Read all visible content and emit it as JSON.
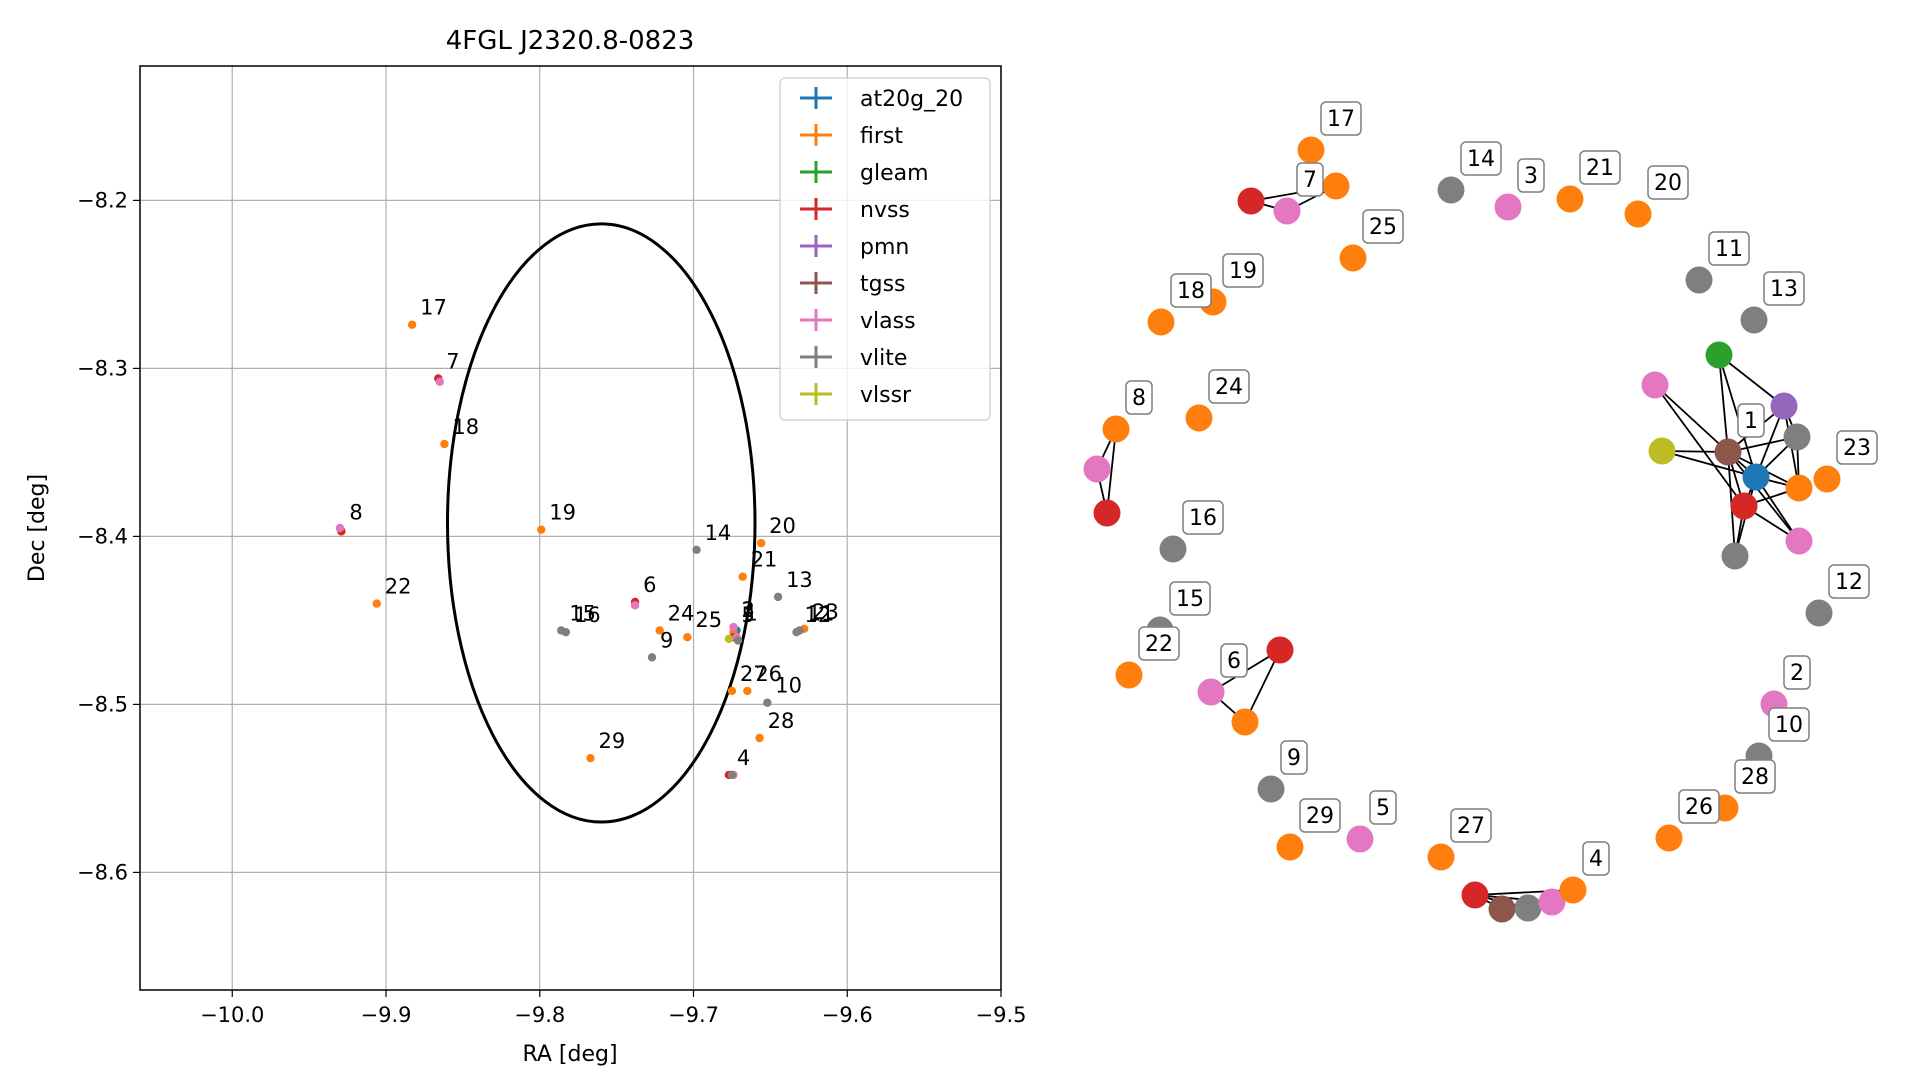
{
  "chart_data": [
    {
      "type": "scatter",
      "title": "4FGL J2320.8-0823",
      "xlabel": "RA [deg]",
      "ylabel": "Dec [deg]",
      "xlim": [
        -10.06,
        -9.5
      ],
      "ylim": [
        -8.67,
        -8.12
      ],
      "x_ticks": [
        -10.0,
        -9.9,
        -9.8,
        -9.7,
        -9.6,
        -9.5
      ],
      "x_tick_labels": [
        "−10.0",
        "−9.9",
        "−9.8",
        "−9.7",
        "−9.6",
        "−9.5"
      ],
      "y_ticks": [
        -8.2,
        -8.3,
        -8.4,
        -8.5,
        -8.6
      ],
      "y_tick_labels": [
        "−8.2",
        "−8.3",
        "−8.4",
        "−8.5",
        "−8.6"
      ],
      "grid": true,
      "legend_position": "top-right",
      "ellipse": {
        "center": [
          -9.76,
          -8.392
        ],
        "semi_axis_ra": 0.1,
        "semi_axis_dec": 0.178,
        "color": "#000000"
      },
      "series": [
        {
          "name": "at20g_20",
          "color": "#1f77b4",
          "points": [
            [
              -9.672,
              -8.456
            ]
          ]
        },
        {
          "name": "first",
          "color": "#ff7f0e",
          "points": [
            [
              -9.883,
              -8.274
            ],
            [
              -9.862,
              -8.345
            ],
            [
              -9.799,
              -8.396
            ],
            [
              -9.906,
              -8.44
            ],
            [
              -9.656,
              -8.404
            ],
            [
              -9.668,
              -8.424
            ],
            [
              -9.722,
              -8.456
            ],
            [
              -9.704,
              -8.46
            ],
            [
              -9.628,
              -8.455
            ],
            [
              -9.675,
              -8.492
            ],
            [
              -9.665,
              -8.492
            ],
            [
              -9.657,
              -8.52
            ],
            [
              -9.767,
              -8.532
            ],
            [
              -9.674,
              -8.457
            ]
          ]
        },
        {
          "name": "gleam",
          "color": "#2ca02c",
          "points": []
        },
        {
          "name": "nvss",
          "color": "#d62728",
          "points": [
            [
              -9.866,
              -8.306
            ],
            [
              -9.929,
              -8.397
            ],
            [
              -9.738,
              -8.439
            ],
            [
              -9.674,
              -8.46
            ],
            [
              -9.677,
              -8.542
            ]
          ]
        },
        {
          "name": "pmn",
          "color": "#9467bd",
          "points": []
        },
        {
          "name": "tgss",
          "color": "#8c564b",
          "points": [
            [
              -9.675,
              -8.542
            ]
          ]
        },
        {
          "name": "vlass",
          "color": "#e377c2",
          "points": [
            [
              -9.865,
              -8.308
            ],
            [
              -9.93,
              -8.395
            ],
            [
              -9.738,
              -8.441
            ],
            [
              -9.672,
              -8.46
            ],
            [
              -9.674,
              -8.454
            ],
            [
              -9.674,
              -8.542
            ]
          ]
        },
        {
          "name": "vlite",
          "color": "#7f7f7f",
          "points": [
            [
              -9.698,
              -8.408
            ],
            [
              -9.645,
              -8.436
            ],
            [
              -9.786,
              -8.456
            ],
            [
              -9.783,
              -8.457
            ],
            [
              -9.727,
              -8.472
            ],
            [
              -9.652,
              -8.499
            ],
            [
              -9.633,
              -8.457
            ],
            [
              -9.631,
              -8.456
            ],
            [
              -9.671,
              -8.462
            ],
            [
              -9.675,
              -8.542
            ]
          ]
        },
        {
          "name": "vlssr",
          "color": "#bcbd22",
          "points": [
            [
              -9.677,
              -8.461
            ]
          ]
        }
      ],
      "annotations": [
        {
          "text": "17",
          "x": -9.883,
          "y": -8.274
        },
        {
          "text": "7",
          "x": -9.866,
          "y": -8.306
        },
        {
          "text": "18",
          "x": -9.862,
          "y": -8.345
        },
        {
          "text": "8",
          "x": -9.929,
          "y": -8.396
        },
        {
          "text": "19",
          "x": -9.799,
          "y": -8.396
        },
        {
          "text": "22",
          "x": -9.906,
          "y": -8.44
        },
        {
          "text": "14",
          "x": -9.698,
          "y": -8.408
        },
        {
          "text": "20",
          "x": -9.656,
          "y": -8.404
        },
        {
          "text": "21",
          "x": -9.668,
          "y": -8.424
        },
        {
          "text": "13",
          "x": -9.645,
          "y": -8.436
        },
        {
          "text": "6",
          "x": -9.738,
          "y": -8.439
        },
        {
          "text": "15",
          "x": -9.786,
          "y": -8.456
        },
        {
          "text": "16",
          "x": -9.783,
          "y": -8.457
        },
        {
          "text": "24",
          "x": -9.722,
          "y": -8.456
        },
        {
          "text": "25",
          "x": -9.704,
          "y": -8.46
        },
        {
          "text": "9",
          "x": -9.727,
          "y": -8.472
        },
        {
          "text": "2",
          "x": -9.674,
          "y": -8.454
        },
        {
          "text": "3",
          "x": -9.674,
          "y": -8.454
        },
        {
          "text": "5",
          "x": -9.674,
          "y": -8.457
        },
        {
          "text": "1",
          "x": -9.672,
          "y": -8.456
        },
        {
          "text": "12",
          "x": -9.633,
          "y": -8.457
        },
        {
          "text": "11",
          "x": -9.631,
          "y": -8.456
        },
        {
          "text": "23",
          "x": -9.628,
          "y": -8.455
        },
        {
          "text": "27",
          "x": -9.675,
          "y": -8.492
        },
        {
          "text": "26",
          "x": -9.665,
          "y": -8.492
        },
        {
          "text": "10",
          "x": -9.652,
          "y": -8.499
        },
        {
          "text": "28",
          "x": -9.657,
          "y": -8.52
        },
        {
          "text": "29",
          "x": -9.767,
          "y": -8.532
        },
        {
          "text": "4",
          "x": -9.677,
          "y": -8.542
        }
      ]
    },
    {
      "type": "network",
      "nodes": [
        {
          "id": "17",
          "color": "#ff7f0e",
          "label": "17"
        },
        {
          "id": "7a",
          "color": "#d62728",
          "label": ""
        },
        {
          "id": "7b",
          "color": "#e377c2",
          "label": "7"
        },
        {
          "id": "7c",
          "color": "#ff7f0e",
          "label": ""
        },
        {
          "id": "25",
          "color": "#ff7f0e",
          "label": "25"
        },
        {
          "id": "14",
          "color": "#7f7f7f",
          "label": "14"
        },
        {
          "id": "3",
          "color": "#e377c2",
          "label": "3"
        },
        {
          "id": "21",
          "color": "#ff7f0e",
          "label": "21"
        },
        {
          "id": "20",
          "color": "#ff7f0e",
          "label": "20"
        },
        {
          "id": "11",
          "color": "#7f7f7f",
          "label": "11"
        },
        {
          "id": "13",
          "color": "#7f7f7f",
          "label": "13"
        },
        {
          "id": "19",
          "color": "#ff7f0e",
          "label": "19"
        },
        {
          "id": "18",
          "color": "#ff7f0e",
          "label": "18"
        },
        {
          "id": "24",
          "color": "#ff7f0e",
          "label": "24"
        },
        {
          "id": "8a",
          "color": "#ff7f0e",
          "label": "8"
        },
        {
          "id": "8b",
          "color": "#e377c2",
          "label": ""
        },
        {
          "id": "8c",
          "color": "#d62728",
          "label": ""
        },
        {
          "id": "16",
          "color": "#7f7f7f",
          "label": "16"
        },
        {
          "id": "1g",
          "color": "#2ca02c",
          "label": ""
        },
        {
          "id": "1p",
          "color": "#e377c2",
          "label": ""
        },
        {
          "id": "1pm",
          "color": "#9467bd",
          "label": ""
        },
        {
          "id": "1vs",
          "color": "#bcbd22",
          "label": ""
        },
        {
          "id": "1t",
          "color": "#8c564b",
          "label": "1"
        },
        {
          "id": "1vl",
          "color": "#7f7f7f",
          "label": ""
        },
        {
          "id": "1a",
          "color": "#1f77b4",
          "label": ""
        },
        {
          "id": "1f",
          "color": "#ff7f0e",
          "label": ""
        },
        {
          "id": "1n",
          "color": "#d62728",
          "label": ""
        },
        {
          "id": "1v2",
          "color": "#e377c2",
          "label": ""
        },
        {
          "id": "1vl2",
          "color": "#7f7f7f",
          "label": ""
        },
        {
          "id": "23",
          "color": "#ff7f0e",
          "label": "23"
        },
        {
          "id": "12",
          "color": "#7f7f7f",
          "label": "12"
        },
        {
          "id": "15",
          "color": "#7f7f7f",
          "label": "15"
        },
        {
          "id": "22",
          "color": "#ff7f0e",
          "label": "22"
        },
        {
          "id": "6a",
          "color": "#d62728",
          "label": ""
        },
        {
          "id": "6b",
          "color": "#e377c2",
          "label": "6"
        },
        {
          "id": "6c",
          "color": "#ff7f0e",
          "label": ""
        },
        {
          "id": "2",
          "color": "#e377c2",
          "label": "2"
        },
        {
          "id": "10",
          "color": "#7f7f7f",
          "label": "10"
        },
        {
          "id": "28",
          "color": "#ff7f0e",
          "label": "28"
        },
        {
          "id": "26",
          "color": "#ff7f0e",
          "label": "26"
        },
        {
          "id": "9",
          "color": "#7f7f7f",
          "label": "9"
        },
        {
          "id": "29",
          "color": "#ff7f0e",
          "label": "29"
        },
        {
          "id": "5",
          "color": "#e377c2",
          "label": "5"
        },
        {
          "id": "27",
          "color": "#ff7f0e",
          "label": "27"
        },
        {
          "id": "4n",
          "color": "#d62728",
          "label": ""
        },
        {
          "id": "4t",
          "color": "#8c564b",
          "label": ""
        },
        {
          "id": "4vl",
          "color": "#7f7f7f",
          "label": ""
        },
        {
          "id": "4v",
          "color": "#e377c2",
          "label": ""
        },
        {
          "id": "4f",
          "color": "#ff7f0e",
          "label": "4"
        }
      ],
      "edges": [
        [
          "7a",
          "7b"
        ],
        [
          "7b",
          "7c"
        ],
        [
          "7a",
          "7c"
        ],
        [
          "8a",
          "8b"
        ],
        [
          "8b",
          "8c"
        ],
        [
          "8a",
          "8c"
        ],
        [
          "6a",
          "6b"
        ],
        [
          "6b",
          "6c"
        ],
        [
          "6a",
          "6c"
        ],
        [
          "4n",
          "4t"
        ],
        [
          "4n",
          "4vl"
        ],
        [
          "4n",
          "4v"
        ],
        [
          "4n",
          "4f"
        ],
        [
          "4t",
          "4vl"
        ],
        [
          "4vl",
          "4v"
        ],
        [
          "4v",
          "4f"
        ],
        [
          "1g",
          "1t"
        ],
        [
          "1g",
          "1a"
        ],
        [
          "1g",
          "1pm"
        ],
        [
          "1p",
          "1t"
        ],
        [
          "1p",
          "1n"
        ],
        [
          "1pm",
          "1t"
        ],
        [
          "1pm",
          "1a"
        ],
        [
          "1pm",
          "1f"
        ],
        [
          "1pm",
          "1vl"
        ],
        [
          "1vs",
          "1t"
        ],
        [
          "1vs",
          "1a"
        ],
        [
          "1t",
          "1a"
        ],
        [
          "1t",
          "1n"
        ],
        [
          "1t",
          "1f"
        ],
        [
          "1t",
          "1v2"
        ],
        [
          "1t",
          "1vl2"
        ],
        [
          "1t",
          "1vl"
        ],
        [
          "1a",
          "1n"
        ],
        [
          "1a",
          "1f"
        ],
        [
          "1a",
          "1vl"
        ],
        [
          "1a",
          "1v2"
        ],
        [
          "1a",
          "1vl2"
        ],
        [
          "1n",
          "1vl2"
        ],
        [
          "1n",
          "1v2"
        ],
        [
          "1n",
          "1f"
        ],
        [
          "1vl",
          "1f"
        ]
      ]
    }
  ]
}
